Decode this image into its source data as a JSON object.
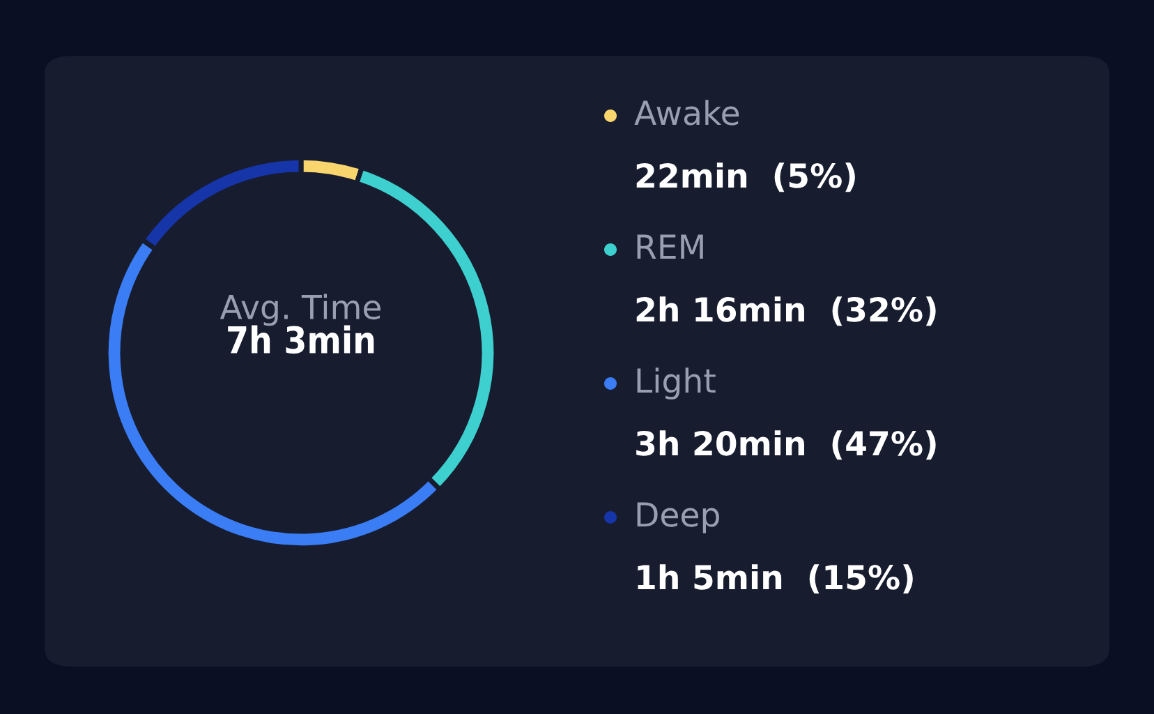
{
  "chart_data": {
    "type": "donut",
    "categories": [
      "Awake",
      "REM",
      "Light",
      "Deep"
    ],
    "values": [
      5,
      32,
      47,
      15
    ],
    "value_labels": [
      "22min  (5%)",
      "2h 16min  (32%)",
      "3h 20min  (47%)",
      "1h 5min  (15%)"
    ],
    "colors": [
      "#f9d56e",
      "#3ecfcf",
      "#3a7df5",
      "#1635a8"
    ],
    "annotations": [
      "Avg. Time",
      "7h 3min"
    ],
    "legend": "right"
  }
}
